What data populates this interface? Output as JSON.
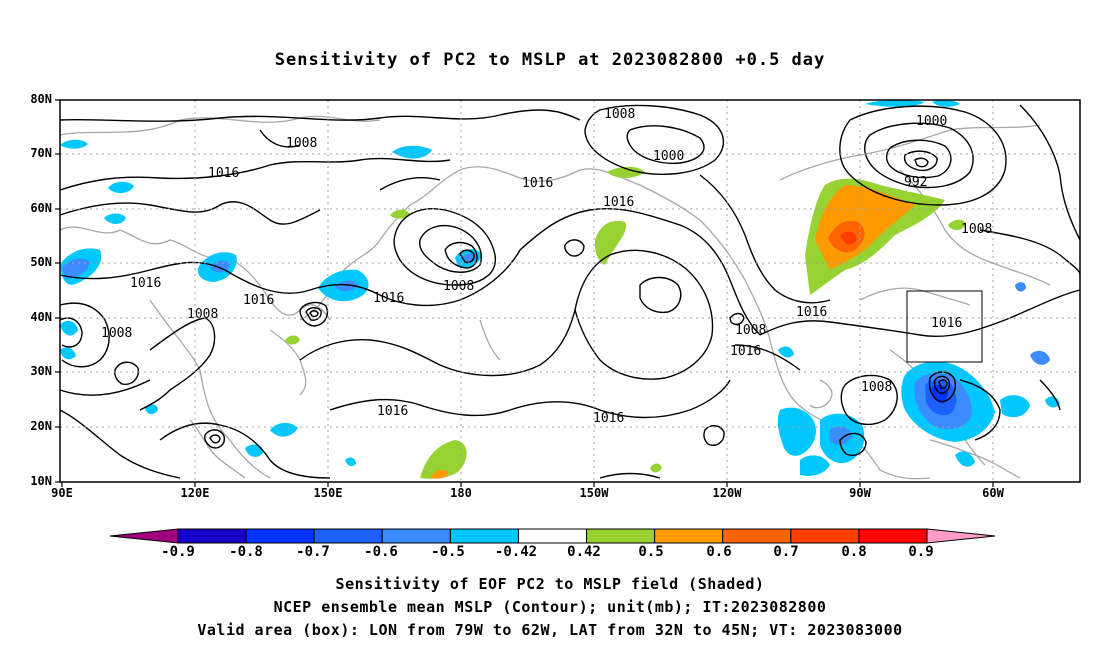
{
  "title": "Sensitivity of PC2 to MSLP at 2023082800 +0.5 day",
  "lat_labels": [
    "80N",
    "70N",
    "60N",
    "50N",
    "40N",
    "30N",
    "20N",
    "10N"
  ],
  "lon_labels": [
    "90E",
    "120E",
    "150E",
    "180",
    "150W",
    "120W",
    "90W",
    "60W"
  ],
  "contour_labels": [
    "1008",
    "1016",
    "1016",
    "1008",
    "1016",
    "1016",
    "1016",
    "1008",
    "1008",
    "1000",
    "992",
    "1008",
    "1016",
    "1016",
    "1016",
    "1008",
    "1016",
    "1016",
    "1008",
    "1016",
    "1008",
    "1000"
  ],
  "colorbar": {
    "ticks": [
      "-0.9",
      "-0.8",
      "-0.7",
      "-0.6",
      "-0.5",
      "-0.42",
      "0.42",
      "0.5",
      "0.6",
      "0.7",
      "0.8",
      "0.9"
    ],
    "colors": [
      "#a0007f",
      "#1400c8",
      "#0032ff",
      "#1e5fff",
      "#3c8cff",
      "#00c8ff",
      "#ffffff",
      "#96d232",
      "#ff9b00",
      "#ff6400",
      "#ff3c00",
      "#ff0000",
      "#ff9bc8"
    ]
  },
  "caption_lines": [
    "Sensitivity of EOF PC2 to MSLP field (Shaded)",
    "NCEP ensemble mean MSLP (Contour); unit(mb); IT:2023082800",
    "Valid area (box): LON from 79W to 62W, LAT from 32N to 45N; VT: 2023083000"
  ]
}
